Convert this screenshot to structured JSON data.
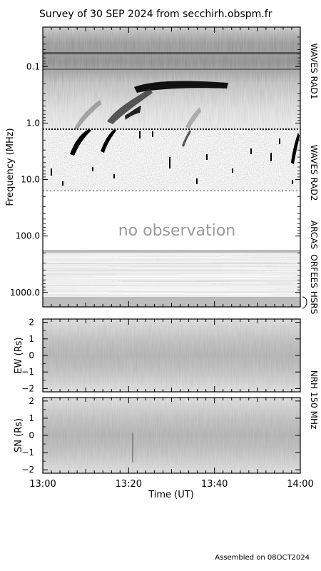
{
  "title": "Survey of 30 SEP 2024 from secchirh.obspm.fr",
  "footer": "Assembled on 08OCT2024",
  "colors": {
    "background": "#ffffff",
    "ink": "#000000",
    "panel_gray": "#c8c8c8"
  },
  "chart_data": [
    {
      "type": "heatmap",
      "panel": "dynamic-spectrum",
      "ylabel": "Frequency (MHz)",
      "y_scale": "log",
      "y_reversed": true,
      "ylim": [
        0.02,
        1800
      ],
      "y_ticks": [
        {
          "value": 0.1,
          "label": "0.1"
        },
        {
          "value": 1.0,
          "label": "1.0"
        },
        {
          "value": 10.0,
          "label": "10.0"
        },
        {
          "value": 100.0,
          "label": "100.0"
        },
        {
          "value": 1000.0,
          "label": "1000.0"
        }
      ],
      "xlim": [
        "13:00",
        "14:00"
      ],
      "instrument_labels": [
        {
          "name": "WAVES RAD1",
          "range_mhz": [
            0.02,
            1.0
          ]
        },
        {
          "name": "WAVES RAD2",
          "range_mhz": [
            1.0,
            14.0
          ]
        },
        {
          "name": "ARCAS",
          "range_mhz": [
            100,
            100
          ]
        },
        {
          "name": "ORFEES",
          "range_mhz": [
            150,
            1000
          ]
        },
        {
          "name": "HSRS",
          "range_mhz": [
            1000,
            1800
          ]
        }
      ],
      "annotations": [
        "no observation"
      ],
      "no_observation_range_mhz": [
        14,
        140
      ]
    },
    {
      "type": "heatmap",
      "panel": "nrh-ew",
      "ylabel": "EW (Rs)",
      "ylim": [
        -2.2,
        2.2
      ],
      "y_ticks": [
        {
          "value": 2,
          "label": "2"
        },
        {
          "value": 1,
          "label": "1"
        },
        {
          "value": 0,
          "label": "0"
        },
        {
          "value": -1,
          "label": "−1"
        },
        {
          "value": -2,
          "label": "−2"
        }
      ]
    },
    {
      "type": "heatmap",
      "panel": "nrh-sn",
      "ylabel": "SN (Rs)",
      "ylim": [
        -2.2,
        2.2
      ],
      "y_ticks": [
        {
          "value": 2,
          "label": "2"
        },
        {
          "value": 1,
          "label": "1"
        },
        {
          "value": 0,
          "label": "0"
        },
        {
          "value": -1,
          "label": "−1"
        },
        {
          "value": -2,
          "label": "−2"
        }
      ],
      "xlabel": "Time (UT)",
      "x_ticks": [
        "13:00",
        "13:20",
        "13:40",
        "14:00"
      ]
    }
  ],
  "nrh_label": "NRH 150 MHz"
}
